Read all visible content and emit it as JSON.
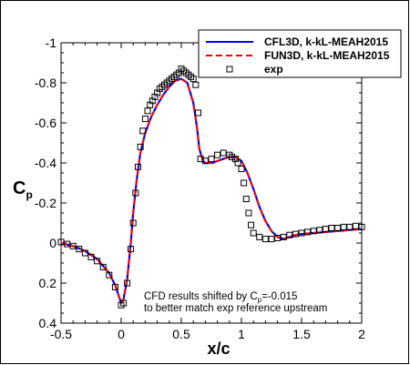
{
  "chart_data": {
    "type": "line",
    "title": "",
    "xlabel": "x/c",
    "ylabel_main": "C",
    "ylabel_sub": "p",
    "xlim": [
      -0.5,
      2
    ],
    "ylim": [
      0.4,
      -1
    ],
    "y_inverted": true,
    "xticks": [
      -0.5,
      0,
      0.5,
      1,
      1.5,
      2
    ],
    "xtick_labels": [
      "-0.5",
      "0",
      "0.5",
      "1",
      "1.5",
      "2"
    ],
    "yticks": [
      -1,
      -0.8,
      -0.6,
      -0.4,
      -0.2,
      0,
      0.2,
      0.4
    ],
    "ytick_labels": [
      "-1",
      "-0.8",
      "-0.6",
      "-0.4",
      "-0.2",
      "0",
      "0.2",
      "0.4"
    ],
    "grid": false,
    "legend_position": "top-right",
    "annotation_lines": [
      "CFD results shifted by C",
      "p",
      "=-0.015",
      "to better match exp reference upstream"
    ],
    "series": [
      {
        "name": "CFL3D, k-kL-MEAH2015",
        "style": "solid",
        "color": "#0000ff",
        "x": [
          -0.5,
          -0.4,
          -0.3,
          -0.2,
          -0.1,
          -0.05,
          0.0,
          0.02,
          0.05,
          0.08,
          0.1,
          0.13,
          0.16,
          0.2,
          0.25,
          0.3,
          0.35,
          0.4,
          0.45,
          0.5,
          0.55,
          0.6,
          0.63,
          0.65,
          0.68,
          0.7,
          0.73,
          0.76,
          0.8,
          0.85,
          0.9,
          0.95,
          1.0,
          1.05,
          1.1,
          1.15,
          1.2,
          1.25,
          1.3,
          1.35,
          1.4,
          1.45,
          1.5,
          1.6,
          1.7,
          1.8,
          1.9,
          2.0
        ],
        "y": [
          0.0,
          0.015,
          0.04,
          0.08,
          0.15,
          0.21,
          0.3,
          0.28,
          0.18,
          0.0,
          -0.15,
          -0.32,
          -0.45,
          -0.55,
          -0.63,
          -0.69,
          -0.74,
          -0.78,
          -0.81,
          -0.82,
          -0.8,
          -0.7,
          -0.58,
          -0.47,
          -0.41,
          -0.4,
          -0.4,
          -0.4,
          -0.41,
          -0.42,
          -0.43,
          -0.43,
          -0.41,
          -0.35,
          -0.27,
          -0.18,
          -0.11,
          -0.06,
          -0.03,
          -0.02,
          -0.03,
          -0.04,
          -0.045,
          -0.05,
          -0.055,
          -0.06,
          -0.065,
          -0.07
        ]
      },
      {
        "name": "FUN3D, k-kL-MEAH2015",
        "style": "dashed",
        "color": "#ff0000",
        "x": [
          -0.5,
          -0.4,
          -0.3,
          -0.2,
          -0.1,
          -0.05,
          0.0,
          0.02,
          0.05,
          0.08,
          0.1,
          0.13,
          0.16,
          0.2,
          0.25,
          0.3,
          0.35,
          0.4,
          0.45,
          0.5,
          0.55,
          0.6,
          0.63,
          0.65,
          0.68,
          0.7,
          0.73,
          0.76,
          0.8,
          0.85,
          0.9,
          0.95,
          1.0,
          1.05,
          1.1,
          1.15,
          1.2,
          1.25,
          1.3,
          1.35,
          1.4,
          1.45,
          1.5,
          1.6,
          1.7,
          1.8,
          1.9,
          2.0
        ],
        "y": [
          0.0,
          0.015,
          0.04,
          0.08,
          0.15,
          0.21,
          0.3,
          0.28,
          0.18,
          0.0,
          -0.15,
          -0.32,
          -0.45,
          -0.55,
          -0.63,
          -0.69,
          -0.74,
          -0.78,
          -0.81,
          -0.82,
          -0.8,
          -0.7,
          -0.58,
          -0.47,
          -0.41,
          -0.4,
          -0.4,
          -0.4,
          -0.41,
          -0.42,
          -0.43,
          -0.43,
          -0.41,
          -0.35,
          -0.27,
          -0.18,
          -0.11,
          -0.06,
          -0.03,
          -0.02,
          -0.03,
          -0.04,
          -0.045,
          -0.05,
          -0.055,
          -0.06,
          -0.065,
          -0.07
        ]
      },
      {
        "name": "exp",
        "style": "markers",
        "marker": "open-square",
        "color": "#000000",
        "x": [
          -0.5,
          -0.45,
          -0.4,
          -0.35,
          -0.3,
          -0.25,
          -0.2,
          -0.15,
          -0.1,
          -0.05,
          0.0,
          0.02,
          0.05,
          0.08,
          0.1,
          0.12,
          0.14,
          0.16,
          0.18,
          0.2,
          0.22,
          0.24,
          0.26,
          0.28,
          0.3,
          0.32,
          0.34,
          0.36,
          0.38,
          0.4,
          0.42,
          0.44,
          0.46,
          0.48,
          0.5,
          0.52,
          0.54,
          0.56,
          0.58,
          0.6,
          0.62,
          0.64,
          0.66,
          0.7,
          0.75,
          0.8,
          0.85,
          0.9,
          0.92,
          0.95,
          0.97,
          1.0,
          1.02,
          1.04,
          1.06,
          1.08,
          1.1,
          1.15,
          1.2,
          1.25,
          1.3,
          1.35,
          1.4,
          1.45,
          1.5,
          1.55,
          1.6,
          1.65,
          1.7,
          1.75,
          1.8,
          1.85,
          1.9,
          1.95,
          2.0
        ],
        "y": [
          -0.005,
          0.005,
          0.015,
          0.03,
          0.05,
          0.07,
          0.09,
          0.12,
          0.16,
          0.22,
          0.31,
          0.3,
          0.2,
          0.03,
          -0.1,
          -0.25,
          -0.38,
          -0.48,
          -0.56,
          -0.62,
          -0.66,
          -0.69,
          -0.71,
          -0.73,
          -0.75,
          -0.77,
          -0.78,
          -0.79,
          -0.8,
          -0.81,
          -0.82,
          -0.83,
          -0.84,
          -0.85,
          -0.87,
          -0.86,
          -0.85,
          -0.84,
          -0.83,
          -0.82,
          -0.79,
          -0.65,
          -0.42,
          -0.41,
          -0.42,
          -0.44,
          -0.45,
          -0.44,
          -0.43,
          -0.42,
          -0.4,
          -0.37,
          -0.3,
          -0.22,
          -0.15,
          -0.09,
          -0.05,
          -0.03,
          -0.02,
          -0.02,
          -0.025,
          -0.03,
          -0.04,
          -0.045,
          -0.05,
          -0.055,
          -0.06,
          -0.065,
          -0.07,
          -0.075,
          -0.075,
          -0.08,
          -0.08,
          -0.085,
          -0.08
        ]
      }
    ]
  }
}
